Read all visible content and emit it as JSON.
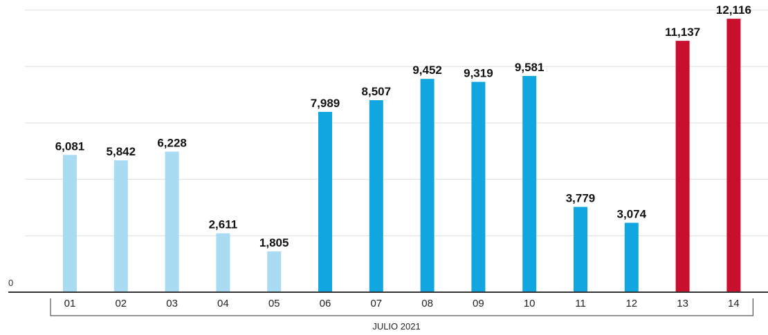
{
  "chart_data": {
    "type": "bar",
    "title": "",
    "xlabel": "JULIO 2021",
    "ylabel": "",
    "categories": [
      "01",
      "02",
      "03",
      "04",
      "05",
      "06",
      "07",
      "08",
      "09",
      "10",
      "11",
      "12",
      "13",
      "14"
    ],
    "values": [
      6081,
      5842,
      6228,
      2611,
      1805,
      7989,
      8507,
      9452,
      9319,
      9581,
      3779,
      3074,
      11137,
      12116
    ],
    "value_labels": [
      "6,081",
      "5,842",
      "6,228",
      "2,611",
      "1,805",
      "7,989",
      "8,507",
      "9,452",
      "9,319",
      "9,581",
      "3,779",
      "3,074",
      "11,137",
      "12,116"
    ],
    "bar_colors": [
      "#a9dcf3",
      "#a9dcf3",
      "#a9dcf3",
      "#a9dcf3",
      "#a9dcf3",
      "#11a6e0",
      "#11a6e0",
      "#11a6e0",
      "#11a6e0",
      "#11a6e0",
      "#11a6e0",
      "#11a6e0",
      "#c8102e",
      "#c8102e"
    ],
    "ylim": [
      0,
      12500
    ],
    "y_tick_labels": [
      "0"
    ],
    "grid": true
  }
}
